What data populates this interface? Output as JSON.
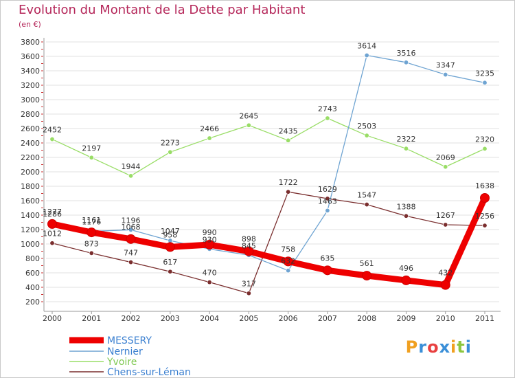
{
  "title": "Evolution du Montant de la Dette par Habitant",
  "subtitle": "(en €)",
  "logo": {
    "text": "Proxiti",
    "colors": [
      "#f0a020",
      "#3a8fd8",
      "#e84040",
      "#3a8fd8",
      "#f0a020",
      "#8cc63f",
      "#3a8fd8"
    ]
  },
  "chart_data": {
    "type": "line",
    "x": [
      "2000",
      "2001",
      "2002",
      "2003",
      "2004",
      "2005",
      "2006",
      "2007",
      "2008",
      "2009",
      "2010",
      "2011"
    ],
    "ylim": [
      200,
      3800
    ],
    "yticks": [
      200,
      400,
      600,
      800,
      1000,
      1200,
      1400,
      1600,
      1800,
      2000,
      2200,
      2400,
      2600,
      2800,
      3000,
      3200,
      3400,
      3600,
      3800
    ],
    "grid": "horizontal",
    "legend_position": "bottom-left",
    "series": [
      {
        "name": "MESSERY",
        "color": "#ee0000",
        "width": 9,
        "marker": 6.5,
        "values": [
          1277,
          1161,
          1068,
          958,
          990,
          898,
          758,
          635,
          561,
          496,
          432,
          1638
        ]
      },
      {
        "name": "Nernier",
        "color": "#6fa4d2",
        "width": 1.3,
        "marker": 3.3,
        "values": [
          1286,
          1176,
          1196,
          1047,
          930,
          845,
          632,
          1463,
          3614,
          3516,
          3347,
          3235
        ]
      },
      {
        "name": "Yvoire",
        "color": "#99dd66",
        "width": 1.3,
        "marker": 3.3,
        "values": [
          2452,
          2197,
          1944,
          2273,
          2466,
          2645,
          2435,
          2743,
          2503,
          2322,
          2069,
          2320
        ]
      },
      {
        "name": "Chens-sur-Léman",
        "color": "#7a2e2e",
        "width": 1.3,
        "marker": 3.3,
        "values": [
          1012,
          873,
          747,
          617,
          470,
          317,
          1722,
          1629,
          1547,
          1388,
          1267,
          1256
        ]
      }
    ]
  }
}
